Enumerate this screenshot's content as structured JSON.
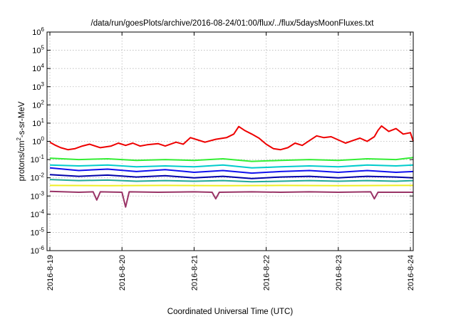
{
  "chart_data": {
    "type": "line",
    "title": "/data/run/goesPlots/archive/2016-08-24/01:00/flux/../flux/5daysMoonFluxes.txt",
    "xlabel": "Coordinated Universal Time (UTC)",
    "ylabel_parts": {
      "pre": "protons/cm",
      "sup": "2",
      "post": "-s-sr-MeV"
    },
    "y_scale": "log",
    "ylim_exponents": [
      -6,
      6
    ],
    "yticks": [
      {
        "base": "10",
        "exp": "6"
      },
      {
        "base": "10",
        "exp": "5"
      },
      {
        "base": "10",
        "exp": "4"
      },
      {
        "base": "10",
        "exp": "3"
      },
      {
        "base": "10",
        "exp": "2"
      },
      {
        "base": "10",
        "exp": "1"
      },
      {
        "base": "10",
        "exp": "0"
      },
      {
        "base": "10",
        "exp": "-1"
      },
      {
        "base": "10",
        "exp": "-2"
      },
      {
        "base": "10",
        "exp": "-3"
      },
      {
        "base": "10",
        "exp": "-4"
      },
      {
        "base": "10",
        "exp": "-5"
      },
      {
        "base": "10",
        "exp": "-6"
      }
    ],
    "x_range_days": [
      "2016-08-19",
      "2016-08-24 01:00"
    ],
    "xticks": [
      "2016-8-19",
      "2016-8-20",
      "2016-8-21",
      "2016-8-22",
      "2016-8-23",
      "2016-8-24"
    ],
    "grid": true,
    "series": [
      {
        "color": "#ee0000",
        "points": [
          [
            0.0,
            0.9
          ],
          [
            0.08,
            0.6
          ],
          [
            0.15,
            0.45
          ],
          [
            0.25,
            0.35
          ],
          [
            0.35,
            0.4
          ],
          [
            0.45,
            0.55
          ],
          [
            0.55,
            0.7
          ],
          [
            0.7,
            0.45
          ],
          [
            0.85,
            0.55
          ],
          [
            0.95,
            0.8
          ],
          [
            1.05,
            0.6
          ],
          [
            1.15,
            0.8
          ],
          [
            1.25,
            0.55
          ],
          [
            1.35,
            0.65
          ],
          [
            1.5,
            0.75
          ],
          [
            1.6,
            0.55
          ],
          [
            1.75,
            0.9
          ],
          [
            1.85,
            0.7
          ],
          [
            1.95,
            1.6
          ],
          [
            2.05,
            1.2
          ],
          [
            2.15,
            0.9
          ],
          [
            2.3,
            1.3
          ],
          [
            2.45,
            1.6
          ],
          [
            2.55,
            2.5
          ],
          [
            2.62,
            6.5
          ],
          [
            2.7,
            4.0
          ],
          [
            2.8,
            2.5
          ],
          [
            2.9,
            1.5
          ],
          [
            3.0,
            0.7
          ],
          [
            3.1,
            0.4
          ],
          [
            3.2,
            0.35
          ],
          [
            3.3,
            0.45
          ],
          [
            3.4,
            0.8
          ],
          [
            3.5,
            0.6
          ],
          [
            3.6,
            1.1
          ],
          [
            3.7,
            2.0
          ],
          [
            3.8,
            1.6
          ],
          [
            3.9,
            1.8
          ],
          [
            4.0,
            1.2
          ],
          [
            4.1,
            0.8
          ],
          [
            4.2,
            1.1
          ],
          [
            4.3,
            1.5
          ],
          [
            4.4,
            1.0
          ],
          [
            4.5,
            1.8
          ],
          [
            4.55,
            4.0
          ],
          [
            4.6,
            7.0
          ],
          [
            4.7,
            3.5
          ],
          [
            4.8,
            5.0
          ],
          [
            4.9,
            2.5
          ],
          [
            5.0,
            3.0
          ],
          [
            5.04,
            1.0
          ]
        ]
      },
      {
        "color": "#33ee33",
        "points": [
          [
            0.0,
            0.12
          ],
          [
            0.4,
            0.1
          ],
          [
            0.8,
            0.11
          ],
          [
            1.2,
            0.09
          ],
          [
            1.6,
            0.1
          ],
          [
            2.0,
            0.09
          ],
          [
            2.4,
            0.11
          ],
          [
            2.8,
            0.08
          ],
          [
            3.2,
            0.09
          ],
          [
            3.6,
            0.1
          ],
          [
            4.0,
            0.09
          ],
          [
            4.4,
            0.11
          ],
          [
            4.8,
            0.1
          ],
          [
            5.04,
            0.13
          ]
        ]
      },
      {
        "color": "#00cccc",
        "points": [
          [
            0.0,
            0.05
          ],
          [
            0.4,
            0.045
          ],
          [
            0.8,
            0.05
          ],
          [
            1.2,
            0.04
          ],
          [
            1.6,
            0.045
          ],
          [
            2.0,
            0.04
          ],
          [
            2.4,
            0.05
          ],
          [
            2.8,
            0.035
          ],
          [
            3.2,
            0.04
          ],
          [
            3.6,
            0.045
          ],
          [
            4.0,
            0.04
          ],
          [
            4.4,
            0.05
          ],
          [
            4.8,
            0.045
          ],
          [
            5.04,
            0.05
          ]
        ]
      },
      {
        "color": "#1111ee",
        "points": [
          [
            0.0,
            0.035
          ],
          [
            0.4,
            0.025
          ],
          [
            0.8,
            0.03
          ],
          [
            1.2,
            0.022
          ],
          [
            1.6,
            0.028
          ],
          [
            2.0,
            0.02
          ],
          [
            2.4,
            0.025
          ],
          [
            2.8,
            0.018
          ],
          [
            3.2,
            0.022
          ],
          [
            3.6,
            0.025
          ],
          [
            4.0,
            0.02
          ],
          [
            4.4,
            0.025
          ],
          [
            4.8,
            0.02
          ],
          [
            5.04,
            0.022
          ]
        ]
      },
      {
        "color": "#0000aa",
        "points": [
          [
            0.0,
            0.015
          ],
          [
            0.4,
            0.012
          ],
          [
            0.8,
            0.014
          ],
          [
            1.2,
            0.011
          ],
          [
            1.6,
            0.013
          ],
          [
            2.0,
            0.01
          ],
          [
            2.4,
            0.012
          ],
          [
            2.8,
            0.009
          ],
          [
            3.2,
            0.011
          ],
          [
            3.6,
            0.012
          ],
          [
            4.0,
            0.01
          ],
          [
            4.4,
            0.012
          ],
          [
            4.8,
            0.011
          ],
          [
            5.04,
            0.01
          ]
        ]
      },
      {
        "color": "#22aa99",
        "points": [
          [
            0.0,
            0.008
          ],
          [
            0.4,
            0.007
          ],
          [
            0.8,
            0.0075
          ],
          [
            1.2,
            0.0065
          ],
          [
            1.6,
            0.007
          ],
          [
            2.0,
            0.0065
          ],
          [
            2.4,
            0.007
          ],
          [
            2.8,
            0.006
          ],
          [
            3.2,
            0.0065
          ],
          [
            3.6,
            0.007
          ],
          [
            4.0,
            0.0065
          ],
          [
            4.4,
            0.007
          ],
          [
            4.8,
            0.0065
          ],
          [
            5.04,
            0.007
          ]
        ]
      },
      {
        "color": "#eeee22",
        "points": [
          [
            0.0,
            0.0038
          ],
          [
            0.8,
            0.0037
          ],
          [
            1.6,
            0.0038
          ],
          [
            2.4,
            0.0037
          ],
          [
            3.2,
            0.0038
          ],
          [
            4.0,
            0.0037
          ],
          [
            4.8,
            0.0038
          ],
          [
            5.04,
            0.0038
          ]
        ]
      },
      {
        "color": "#993366",
        "points": [
          [
            0.0,
            0.0018
          ],
          [
            0.4,
            0.0016
          ],
          [
            0.6,
            0.0017
          ],
          [
            0.65,
            0.0006
          ],
          [
            0.7,
            0.0017
          ],
          [
            1.0,
            0.0016
          ],
          [
            1.05,
            0.00025
          ],
          [
            1.1,
            0.0017
          ],
          [
            1.5,
            0.0016
          ],
          [
            2.0,
            0.0017
          ],
          [
            2.25,
            0.0016
          ],
          [
            2.3,
            0.0007
          ],
          [
            2.35,
            0.0016
          ],
          [
            2.8,
            0.0017
          ],
          [
            3.2,
            0.0016
          ],
          [
            3.6,
            0.0017
          ],
          [
            4.0,
            0.0016
          ],
          [
            4.45,
            0.0017
          ],
          [
            4.5,
            0.0007
          ],
          [
            4.55,
            0.0016
          ],
          [
            5.04,
            0.0016
          ]
        ]
      }
    ]
  }
}
